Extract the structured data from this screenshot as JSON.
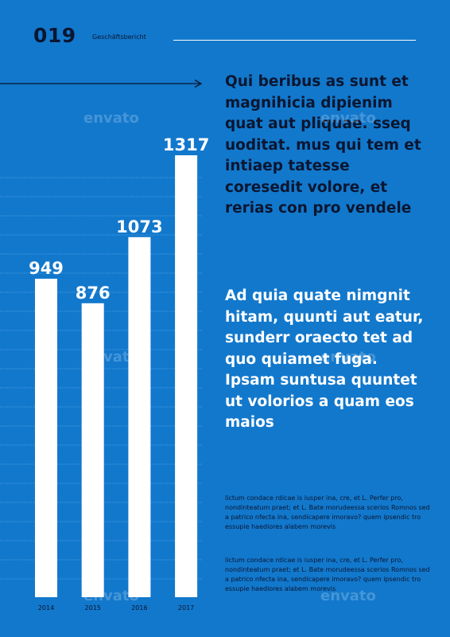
{
  "header": {
    "page_number": "019",
    "section_title": "Geschäftsbericht"
  },
  "text": {
    "headline": "Qui beribus as sunt et magnihicia dipienim quat aut pliquae. sseq uoditat. mus qui tem et intiaep tatesse coresedit volore, et rerias con pro vendele",
    "subhead": "Ad quia quate nimgnit hitam, quunti aut eatur, sunderr oraecto tet ad quo quiamet fuga. Ipsam suntusa quuntet ut volorios a quam eos maios",
    "paragraphs": [
      "lictum condace rdicae is iusper ina, cre, et L. Perfer pro, nondinteatum praet; et L. Bate morudeessa scerios Romnos sed a patrico nfecta ina, sendicapere imoravo? quem ipsendic tro essupie haediores alabem morevis",
      "lictum condace rdicae is iusper ina, cre, et L. Perfer pro, nondinteatum praet; et L. Bate morudeessa scerios Romnos sed a patrico nfecta ina, sendicapere imoravo? quem ipsendic tro essupie haediores alabem morevis"
    ]
  },
  "watermark": "envato",
  "colors": {
    "background": "#1278cc",
    "bar": "#ffffff",
    "dark_text": "#0b1630",
    "grid": "#5aa6e6"
  },
  "chart_data": {
    "type": "bar",
    "categories": [
      "2014",
      "2015",
      "2016",
      "2017"
    ],
    "values": [
      949,
      876,
      1073,
      1317
    ],
    "title": "",
    "xlabel": "",
    "ylabel": "",
    "ylim": [
      0,
      1317
    ],
    "grid": true,
    "data_labels": true
  }
}
